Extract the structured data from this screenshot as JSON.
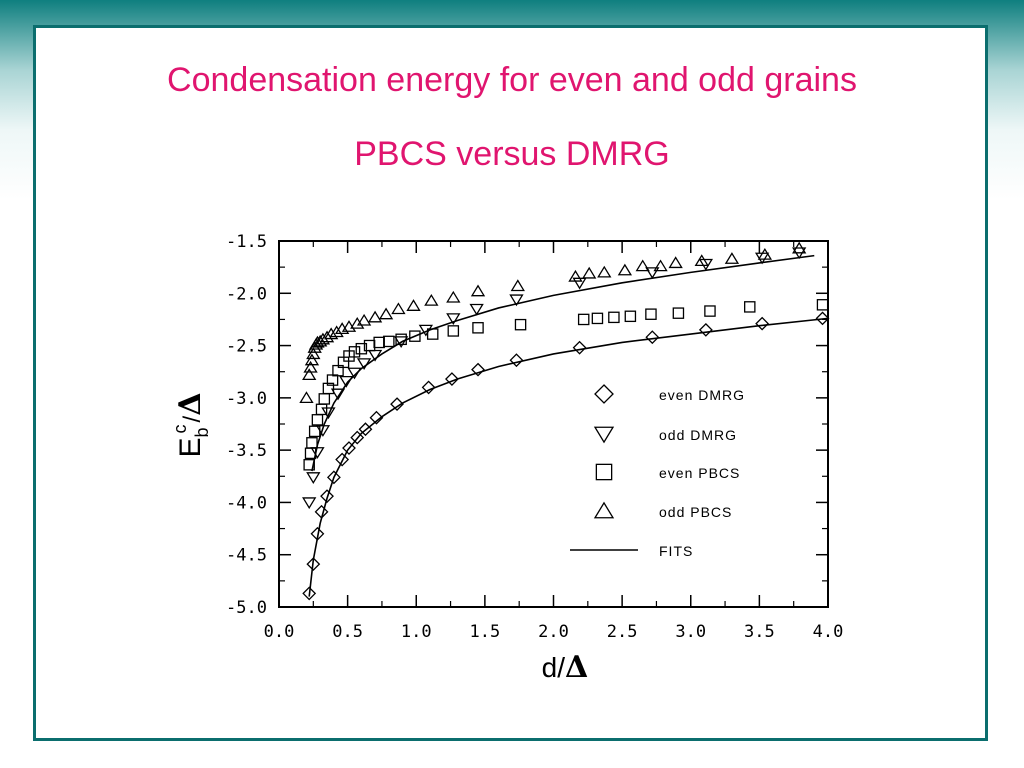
{
  "slide": {
    "title": "Condensation energy for even and odd grains",
    "subtitle": "PBCS versus DMRG",
    "title_color": "#e0156f",
    "frame_color": "#0b6e6e"
  },
  "chart_data": {
    "type": "scatter",
    "xlabel_text": "d/",
    "xlabel_symbol": "Δ",
    "ylabel_main": "E",
    "ylabel_sub": "b",
    "ylabel_sup": "c",
    "ylabel_slash": "/",
    "ylabel_symbol": "Δ",
    "xlim": [
      0.0,
      4.0
    ],
    "ylim": [
      -5.0,
      -1.5
    ],
    "xticks": [
      "0.0",
      "0.5",
      "1.0",
      "1.5",
      "2.0",
      "2.5",
      "3.0",
      "3.5",
      "4.0"
    ],
    "yticks": [
      "-1.5",
      "-2.0",
      "-2.5",
      "-3.0",
      "-3.5",
      "-4.0",
      "-4.5",
      "-5.0"
    ],
    "legend_position": "lower-right",
    "series": [
      {
        "name": "even DMRG",
        "marker": "diamond",
        "points": [
          [
            0.22,
            -4.87
          ],
          [
            0.25,
            -4.59
          ],
          [
            0.28,
            -4.3
          ],
          [
            0.31,
            -4.09
          ],
          [
            0.35,
            -3.94
          ],
          [
            0.4,
            -3.76
          ],
          [
            0.46,
            -3.59
          ],
          [
            0.51,
            -3.48
          ],
          [
            0.57,
            -3.38
          ],
          [
            0.63,
            -3.3
          ],
          [
            0.71,
            -3.19
          ],
          [
            0.86,
            -3.06
          ],
          [
            1.09,
            -2.9
          ],
          [
            1.26,
            -2.82
          ],
          [
            1.45,
            -2.73
          ],
          [
            1.73,
            -2.64
          ],
          [
            2.19,
            -2.52
          ],
          [
            2.72,
            -2.42
          ],
          [
            3.11,
            -2.35
          ],
          [
            3.52,
            -2.29
          ],
          [
            3.96,
            -2.24
          ]
        ]
      },
      {
        "name": "odd DMRG",
        "marker": "triangle-down",
        "points": [
          [
            0.22,
            -4.0
          ],
          [
            0.25,
            -3.76
          ],
          [
            0.28,
            -3.52
          ],
          [
            0.32,
            -3.31
          ],
          [
            0.36,
            -3.14
          ],
          [
            0.43,
            -2.96
          ],
          [
            0.49,
            -2.84
          ],
          [
            0.55,
            -2.76
          ],
          [
            0.62,
            -2.67
          ],
          [
            0.7,
            -2.59
          ],
          [
            0.89,
            -2.46
          ],
          [
            1.07,
            -2.35
          ],
          [
            1.27,
            -2.24
          ],
          [
            1.44,
            -2.15
          ],
          [
            1.73,
            -2.06
          ],
          [
            2.19,
            -1.9
          ],
          [
            2.72,
            -1.8
          ],
          [
            3.11,
            -1.72
          ],
          [
            3.52,
            -1.66
          ],
          [
            3.79,
            -1.61
          ]
        ]
      },
      {
        "name": "even PBCS",
        "marker": "square",
        "points": [
          [
            0.22,
            -3.64
          ],
          [
            0.23,
            -3.53
          ],
          [
            0.24,
            -3.43
          ],
          [
            0.26,
            -3.32
          ],
          [
            0.28,
            -3.21
          ],
          [
            0.31,
            -3.11
          ],
          [
            0.33,
            -3.01
          ],
          [
            0.36,
            -2.91
          ],
          [
            0.39,
            -2.83
          ],
          [
            0.43,
            -2.74
          ],
          [
            0.47,
            -2.66
          ],
          [
            0.51,
            -2.6
          ],
          [
            0.55,
            -2.56
          ],
          [
            0.6,
            -2.53
          ],
          [
            0.66,
            -2.5
          ],
          [
            0.73,
            -2.47
          ],
          [
            0.8,
            -2.46
          ],
          [
            0.89,
            -2.44
          ],
          [
            0.99,
            -2.41
          ],
          [
            1.12,
            -2.39
          ],
          [
            1.27,
            -2.36
          ],
          [
            1.45,
            -2.33
          ],
          [
            1.76,
            -2.3
          ],
          [
            2.22,
            -2.25
          ],
          [
            2.32,
            -2.24
          ],
          [
            2.44,
            -2.23
          ],
          [
            2.56,
            -2.22
          ],
          [
            2.71,
            -2.2
          ],
          [
            2.91,
            -2.19
          ],
          [
            3.14,
            -2.17
          ],
          [
            3.43,
            -2.13
          ],
          [
            3.96,
            -2.11
          ]
        ]
      },
      {
        "name": "odd PBCS",
        "marker": "triangle-up",
        "points": [
          [
            0.2,
            -3.0
          ],
          [
            0.22,
            -2.78
          ],
          [
            0.23,
            -2.71
          ],
          [
            0.24,
            -2.64
          ],
          [
            0.25,
            -2.58
          ],
          [
            0.26,
            -2.52
          ],
          [
            0.27,
            -2.49
          ],
          [
            0.28,
            -2.47
          ],
          [
            0.3,
            -2.46
          ],
          [
            0.32,
            -2.44
          ],
          [
            0.35,
            -2.42
          ],
          [
            0.38,
            -2.39
          ],
          [
            0.42,
            -2.37
          ],
          [
            0.46,
            -2.34
          ],
          [
            0.51,
            -2.32
          ],
          [
            0.57,
            -2.29
          ],
          [
            0.62,
            -2.26
          ],
          [
            0.7,
            -2.23
          ],
          [
            0.78,
            -2.2
          ],
          [
            0.87,
            -2.15
          ],
          [
            0.98,
            -2.12
          ],
          [
            1.11,
            -2.07
          ],
          [
            1.27,
            -2.04
          ],
          [
            1.45,
            -1.98
          ],
          [
            1.74,
            -1.93
          ],
          [
            2.16,
            -1.84
          ],
          [
            2.26,
            -1.81
          ],
          [
            2.37,
            -1.8
          ],
          [
            2.52,
            -1.78
          ],
          [
            2.65,
            -1.74
          ],
          [
            2.78,
            -1.74
          ],
          [
            2.89,
            -1.71
          ],
          [
            3.08,
            -1.69
          ],
          [
            3.3,
            -1.67
          ],
          [
            3.54,
            -1.63
          ],
          [
            3.79,
            -1.57
          ]
        ]
      },
      {
        "name": "FITS",
        "marker": "line",
        "lines": [
          [
            [
              0.22,
              -4.9
            ],
            [
              0.25,
              -4.55
            ],
            [
              0.3,
              -4.2
            ],
            [
              0.35,
              -3.96
            ],
            [
              0.4,
              -3.76
            ],
            [
              0.5,
              -3.5
            ],
            [
              0.6,
              -3.34
            ],
            [
              0.75,
              -3.18
            ],
            [
              0.9,
              -3.05
            ],
            [
              1.1,
              -2.92
            ],
            [
              1.3,
              -2.82
            ],
            [
              1.6,
              -2.7
            ],
            [
              2.0,
              -2.58
            ],
            [
              2.5,
              -2.47
            ],
            [
              3.0,
              -2.39
            ],
            [
              3.5,
              -2.31
            ],
            [
              4.0,
              -2.24
            ]
          ],
          [
            [
              0.24,
              -3.7
            ],
            [
              0.28,
              -3.45
            ],
            [
              0.33,
              -3.25
            ],
            [
              0.4,
              -3.05
            ],
            [
              0.5,
              -2.85
            ],
            [
              0.6,
              -2.72
            ],
            [
              0.75,
              -2.58
            ],
            [
              0.9,
              -2.46
            ],
            [
              1.1,
              -2.35
            ],
            [
              1.3,
              -2.26
            ],
            [
              1.6,
              -2.14
            ],
            [
              2.0,
              -2.02
            ],
            [
              2.5,
              -1.9
            ],
            [
              3.0,
              -1.8
            ],
            [
              3.5,
              -1.71
            ],
            [
              3.9,
              -1.64
            ]
          ]
        ]
      }
    ]
  }
}
